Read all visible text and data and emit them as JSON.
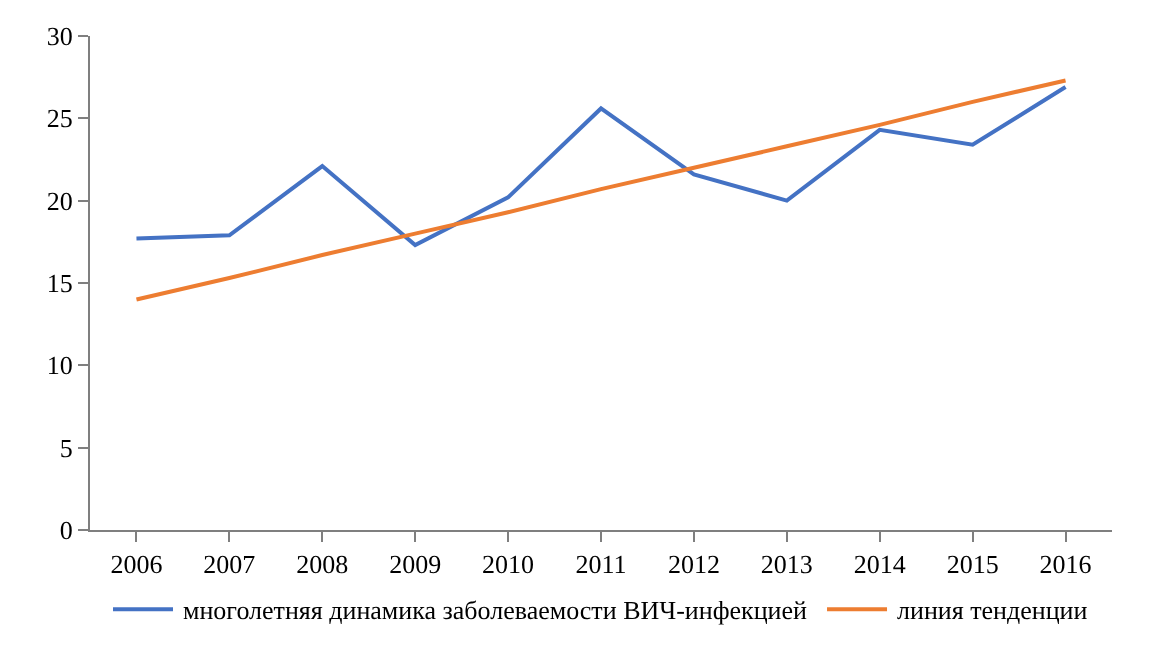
{
  "chart_data": {
    "type": "line",
    "categories": [
      "2006",
      "2007",
      "2008",
      "2009",
      "2010",
      "2011",
      "2012",
      "2013",
      "2014",
      "2015",
      "2016"
    ],
    "series": [
      {
        "name": "многолетняя динамика заболеваемости ВИЧ-инфекцией",
        "color": "#4472c4",
        "values": [
          17.7,
          17.9,
          22.1,
          17.3,
          20.2,
          25.6,
          21.6,
          20.0,
          24.3,
          23.4,
          26.9
        ]
      },
      {
        "name": "линия тенденции",
        "color": "#ed7d31",
        "values": [
          14.0,
          15.3,
          16.7,
          18.0,
          19.3,
          20.7,
          22.0,
          23.3,
          24.6,
          26.0,
          27.3
        ]
      }
    ],
    "ylim": [
      0,
      30
    ],
    "yticks": [
      0,
      5,
      10,
      15,
      20,
      25,
      30
    ],
    "grid": false,
    "legend": "bottom",
    "marker": "none",
    "line_style": "solid"
  }
}
